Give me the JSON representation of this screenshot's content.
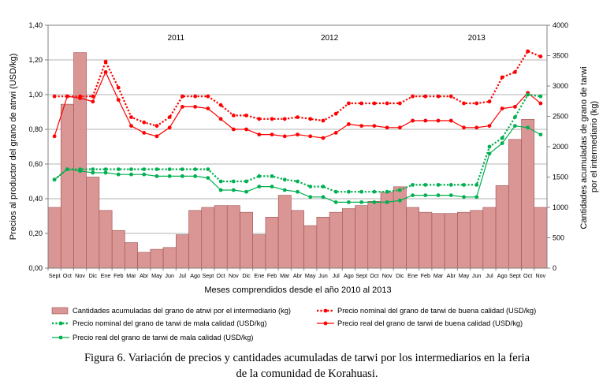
{
  "chart_data": {
    "type": "bar+line",
    "title": "",
    "xlabel": "Meses comprendidos desde el año 2010 al 2013",
    "ylabel_left": "Precios al productor del grano de atrwi (USD/kg)",
    "ylabel_right": "Cantidades acumuladas de grano de tarwi por el intermediario (kg)",
    "ylim_left": [
      0,
      1.4
    ],
    "ylim_right": [
      0,
      4000
    ],
    "yticks_left": [
      "0,00",
      "0,20",
      "0,40",
      "0,60",
      "0,80",
      "1,00",
      "1,20",
      "1,40"
    ],
    "yticks_right": [
      "0",
      "500",
      "1000",
      "1500",
      "2000",
      "2500",
      "3000",
      "3500",
      "4000"
    ],
    "years": [
      "2011",
      "2012",
      "2013"
    ],
    "categories": [
      "Sept",
      "Oct",
      "Nov",
      "Dic",
      "Ene",
      "Feb",
      "Mar",
      "Abr",
      "May",
      "Jun",
      "Jul",
      "Ago",
      "Sept",
      "Oct",
      "Nov",
      "Dic",
      "Ene",
      "Feb",
      "Mar",
      "Abr",
      "May",
      "Jun",
      "Jul",
      "Ago",
      "Sept",
      "Oct",
      "Nov",
      "Dic",
      "Ene",
      "Feb",
      "Mar",
      "Abr",
      "May",
      "Jun",
      "Jul",
      "Ago",
      "Sept",
      "Oct",
      "Nov"
    ],
    "bar_series": {
      "name": "Cantidades acumuladas del grano de atrwi por el intermediario (kg)",
      "axis": "right",
      "color": "#d99694",
      "values": [
        1000,
        2700,
        3550,
        1500,
        950,
        620,
        420,
        260,
        310,
        340,
        550,
        950,
        1000,
        1030,
        1030,
        920,
        550,
        840,
        1200,
        950,
        700,
        840,
        920,
        980,
        1030,
        1100,
        1250,
        1340,
        1000,
        920,
        900,
        900,
        920,
        950,
        1000,
        1360,
        2120,
        2450,
        1000
      ]
    },
    "series": [
      {
        "name": "Precio nominal del  grano de tarwi de buena calidad (USD/kg)",
        "axis": "left",
        "style": "dotted",
        "color": "#ff0000",
        "values": [
          0.99,
          0.99,
          0.99,
          0.99,
          1.19,
          1.04,
          0.87,
          0.84,
          0.82,
          0.87,
          0.99,
          0.99,
          0.99,
          0.94,
          0.88,
          0.88,
          0.86,
          0.86,
          0.86,
          0.87,
          0.86,
          0.85,
          0.89,
          0.95,
          0.95,
          0.95,
          0.95,
          0.95,
          0.99,
          0.99,
          0.99,
          0.99,
          0.95,
          0.95,
          0.96,
          1.1,
          1.13,
          1.25,
          1.22
        ]
      },
      {
        "name": "Precio real del grano de tarwi de buena calidad (USD/kg)",
        "axis": "left",
        "style": "solid",
        "color": "#ff0000",
        "values": [
          0.76,
          0.99,
          0.98,
          0.96,
          1.13,
          0.97,
          0.82,
          0.78,
          0.76,
          0.81,
          0.93,
          0.93,
          0.92,
          0.86,
          0.8,
          0.8,
          0.77,
          0.77,
          0.76,
          0.77,
          0.76,
          0.75,
          0.78,
          0.83,
          0.82,
          0.82,
          0.81,
          0.81,
          0.85,
          0.85,
          0.85,
          0.85,
          0.81,
          0.81,
          0.82,
          0.92,
          0.93,
          1.01,
          0.95
        ]
      },
      {
        "name": "Precio nominal del grano de tarwi de mala calidad (USD/kg)",
        "axis": "left",
        "style": "dotted",
        "color": "#00b050",
        "values": [
          0.51,
          0.57,
          0.57,
          0.57,
          0.57,
          0.57,
          0.57,
          0.57,
          0.57,
          0.57,
          0.57,
          0.57,
          0.57,
          0.5,
          0.5,
          0.5,
          0.53,
          0.53,
          0.51,
          0.5,
          0.47,
          0.47,
          0.44,
          0.44,
          0.44,
          0.44,
          0.44,
          0.45,
          0.48,
          0.48,
          0.48,
          0.48,
          0.48,
          0.48,
          0.7,
          0.75,
          0.87,
          1.0,
          0.99
        ]
      },
      {
        "name": "Precio real del grano de tarwi de mala calidad (USD/kg)",
        "axis": "left",
        "style": "solid",
        "color": "#00b050",
        "values": [
          0.51,
          0.57,
          0.56,
          0.55,
          0.55,
          0.54,
          0.54,
          0.54,
          0.53,
          0.53,
          0.53,
          0.53,
          0.52,
          0.45,
          0.45,
          0.44,
          0.47,
          0.47,
          0.45,
          0.44,
          0.41,
          0.41,
          0.38,
          0.38,
          0.38,
          0.38,
          0.38,
          0.39,
          0.42,
          0.42,
          0.42,
          0.42,
          0.41,
          0.41,
          0.66,
          0.72,
          0.82,
          0.81,
          0.77
        ]
      }
    ],
    "legend": [
      "Cantidades acumuladas del grano de atrwi por el intermediario (kg)",
      "Precio nominal del  grano de tarwi de buena calidad (USD/kg)",
      "Precio nominal del grano de tarwi de mala calidad (USD/kg)",
      "Precio real del grano de tarwi de buena calidad (USD/kg)",
      "Precio real del grano de tarwi de mala calidad (USD/kg)"
    ]
  },
  "caption": {
    "line1": "Figura 6. Variación de precios y cantidades acumuladas de tarwi por los intermediarios en la feria",
    "line2": "de la comunidad de Korahuasi."
  }
}
